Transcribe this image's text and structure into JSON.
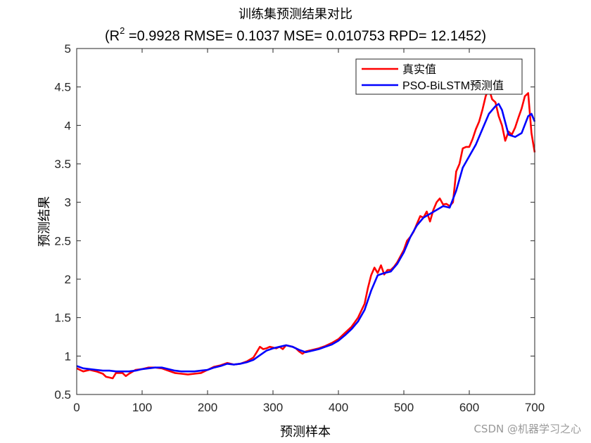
{
  "chart_data": {
    "type": "line",
    "title": "训练集预测结果对比",
    "subtitle": {
      "prefix": "(R",
      "sup": "2",
      "rest": " =0.9928 RMSE= 0.1037 MSE= 0.010753 RPD= 12.1452)"
    },
    "xlabel": "预测样本",
    "ylabel": "预测结果",
    "xlim": [
      0,
      700
    ],
    "ylim": [
      0.5,
      5
    ],
    "xticks": [
      0,
      100,
      200,
      300,
      400,
      500,
      600,
      700
    ],
    "yticks": [
      0.5,
      1,
      1.5,
      2,
      2.5,
      3,
      3.5,
      4,
      4.5,
      5
    ],
    "legend_position": "top-right",
    "series": [
      {
        "name": "真实值",
        "color": "#ff0000",
        "x": [
          0,
          10,
          20,
          30,
          40,
          45,
          50,
          55,
          60,
          70,
          75,
          80,
          90,
          100,
          110,
          120,
          130,
          140,
          150,
          160,
          170,
          180,
          190,
          200,
          210,
          220,
          230,
          240,
          250,
          260,
          270,
          275,
          280,
          285,
          290,
          295,
          300,
          305,
          310,
          315,
          320,
          325,
          330,
          335,
          340,
          345,
          350,
          360,
          370,
          380,
          390,
          400,
          410,
          420,
          430,
          440,
          445,
          450,
          455,
          460,
          465,
          470,
          475,
          480,
          485,
          490,
          500,
          505,
          510,
          515,
          520,
          525,
          530,
          535,
          540,
          545,
          550,
          555,
          560,
          565,
          570,
          575,
          580,
          585,
          590,
          595,
          600,
          605,
          610,
          615,
          620,
          625,
          630,
          635,
          640,
          645,
          650,
          655,
          660,
          665,
          670,
          675,
          680,
          685,
          690,
          695,
          698,
          700
        ],
        "y": [
          0.84,
          0.8,
          0.82,
          0.8,
          0.77,
          0.73,
          0.72,
          0.71,
          0.78,
          0.78,
          0.74,
          0.77,
          0.82,
          0.83,
          0.85,
          0.85,
          0.84,
          0.81,
          0.78,
          0.77,
          0.76,
          0.77,
          0.78,
          0.82,
          0.86,
          0.88,
          0.91,
          0.89,
          0.9,
          0.93,
          0.98,
          1.05,
          1.12,
          1.09,
          1.1,
          1.12,
          1.11,
          1.1,
          1.12,
          1.09,
          1.14,
          1.13,
          1.12,
          1.1,
          1.06,
          1.03,
          1.06,
          1.08,
          1.1,
          1.13,
          1.17,
          1.22,
          1.3,
          1.38,
          1.5,
          1.68,
          1.88,
          2.05,
          2.15,
          2.08,
          2.18,
          2.06,
          2.12,
          2.12,
          2.16,
          2.22,
          2.38,
          2.5,
          2.55,
          2.62,
          2.72,
          2.82,
          2.8,
          2.88,
          2.75,
          2.9,
          3.0,
          3.05,
          2.97,
          2.98,
          2.95,
          3.0,
          3.4,
          3.5,
          3.7,
          3.72,
          3.72,
          3.82,
          3.95,
          4.05,
          4.2,
          4.38,
          4.48,
          4.34,
          4.3,
          4.12,
          4.0,
          3.8,
          3.92,
          3.88,
          3.97,
          4.1,
          4.22,
          4.38,
          4.42,
          3.9,
          3.75,
          3.65
        ]
      },
      {
        "name": "PSO-BiLSTM预测值",
        "color": "#0000ff",
        "x": [
          0,
          10,
          20,
          30,
          40,
          50,
          60,
          70,
          80,
          90,
          100,
          110,
          120,
          130,
          140,
          150,
          160,
          170,
          180,
          190,
          200,
          210,
          220,
          230,
          240,
          250,
          260,
          270,
          280,
          290,
          300,
          310,
          320,
          330,
          340,
          350,
          360,
          370,
          380,
          390,
          400,
          410,
          420,
          430,
          440,
          450,
          460,
          470,
          480,
          490,
          500,
          510,
          520,
          530,
          540,
          550,
          560,
          570,
          580,
          590,
          600,
          610,
          620,
          630,
          640,
          645,
          650,
          660,
          670,
          680,
          690,
          695,
          700
        ],
        "y": [
          0.87,
          0.84,
          0.83,
          0.82,
          0.81,
          0.81,
          0.8,
          0.8,
          0.8,
          0.81,
          0.83,
          0.84,
          0.85,
          0.85,
          0.83,
          0.81,
          0.8,
          0.8,
          0.8,
          0.81,
          0.82,
          0.85,
          0.87,
          0.9,
          0.89,
          0.9,
          0.92,
          0.95,
          1.01,
          1.07,
          1.1,
          1.12,
          1.14,
          1.12,
          1.08,
          1.05,
          1.07,
          1.09,
          1.12,
          1.15,
          1.2,
          1.27,
          1.35,
          1.45,
          1.6,
          1.85,
          2.05,
          2.08,
          2.1,
          2.2,
          2.35,
          2.55,
          2.7,
          2.8,
          2.85,
          2.9,
          2.95,
          2.93,
          3.15,
          3.45,
          3.6,
          3.75,
          3.95,
          4.15,
          4.25,
          4.28,
          4.2,
          3.88,
          3.85,
          3.9,
          4.12,
          4.15,
          4.05
        ]
      }
    ]
  },
  "watermark": "CSDN @机器学习之心"
}
